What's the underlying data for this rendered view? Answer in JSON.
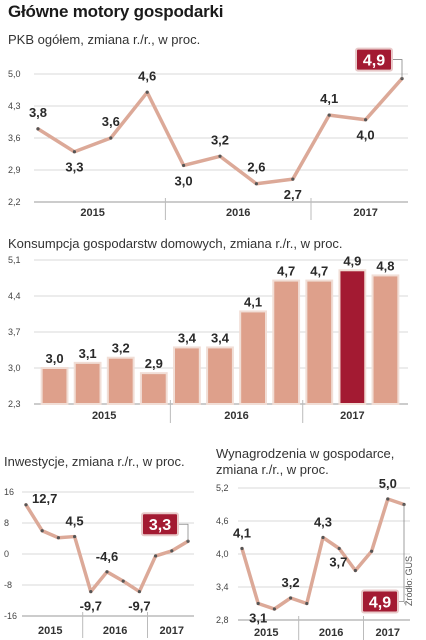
{
  "page": {
    "title": "Główne motory gospodarki",
    "source": "Źródło: GUS"
  },
  "colors": {
    "line": "#dca998",
    "bar": "#dea08b",
    "highlight": "#a31a32",
    "grid": "#d8d8d8",
    "marker": "#555555"
  },
  "chart_data": [
    {
      "id": "pkb",
      "type": "line",
      "title": "PKB ogółem, zmiana r./r., w proc.",
      "values": [
        3.8,
        3.3,
        3.6,
        4.6,
        3.0,
        3.2,
        2.6,
        2.7,
        4.1,
        4.0,
        4.9
      ],
      "labels": [
        "3,8",
        "3,3",
        "3,6",
        "4,6",
        "3,0",
        "3,2",
        "2,6",
        "2,7",
        "4,1",
        "4,0",
        "4,9"
      ],
      "label_pos": [
        "above",
        "below",
        "above",
        "above",
        "below",
        "above",
        "above",
        "below",
        "above",
        "below",
        "highlight"
      ],
      "yticks": [
        5.0,
        4.3,
        3.6,
        2.9,
        2.2
      ],
      "ytick_labels": [
        "5,0",
        "4,3",
        "3,6",
        "2,9",
        "2,2"
      ],
      "ylim": [
        2.2,
        5.0
      ],
      "years": [
        "2015",
        "2016",
        "2017"
      ],
      "year_spans": [
        [
          0,
          3
        ],
        [
          4,
          7
        ],
        [
          8,
          10
        ]
      ],
      "highlight_index": 10
    },
    {
      "id": "konsumpcja",
      "type": "bar",
      "title": "Konsumpcja gospodarstw domowych, zmiana r./r., w proc.",
      "values": [
        3.0,
        3.1,
        3.2,
        2.9,
        3.4,
        3.4,
        4.1,
        4.7,
        4.7,
        4.9,
        4.8
      ],
      "labels": [
        "3,0",
        "3,1",
        "3,2",
        "2,9",
        "3,4",
        "3,4",
        "4,1",
        "4,7",
        "4,7",
        "4,9",
        "4,8"
      ],
      "yticks": [
        5.1,
        4.4,
        3.7,
        3.0,
        2.3
      ],
      "ytick_labels": [
        "5,1",
        "4,4",
        "3,7",
        "3,0",
        "2,3"
      ],
      "ylim": [
        2.3,
        5.1
      ],
      "years": [
        "2015",
        "2016",
        "2017"
      ],
      "year_spans": [
        [
          0,
          3
        ],
        [
          4,
          7
        ],
        [
          8,
          10
        ]
      ],
      "highlight_index": 9
    },
    {
      "id": "inwestycje",
      "type": "line",
      "title": "Inwestycje, zmiana r./r., w proc.",
      "values": [
        12.7,
        6.0,
        4.2,
        4.5,
        -9.7,
        -4.6,
        -7.0,
        -9.7,
        -0.5,
        0.8,
        3.3
      ],
      "labels": [
        "12,7",
        "",
        "",
        "4,5",
        "-9,7",
        "-4,6",
        "",
        "-9,7",
        "",
        "",
        "3,3"
      ],
      "label_pos": [
        "right",
        "",
        "",
        "above",
        "below",
        "above",
        "",
        "below",
        "",
        "",
        "highlight"
      ],
      "yticks": [
        16,
        8,
        0,
        -8,
        -16
      ],
      "ytick_labels": [
        "16",
        "8",
        "0",
        "-8",
        "-16"
      ],
      "ylim": [
        -16,
        16
      ],
      "years": [
        "2015",
        "2016",
        "2017"
      ],
      "year_spans": [
        [
          0,
          3
        ],
        [
          4,
          7
        ],
        [
          8,
          10
        ]
      ],
      "highlight_index": 10
    },
    {
      "id": "wynagrodzenia",
      "type": "line",
      "title": [
        "Wynagrodzenia w gospodarce,",
        "zmiana r./r., w proc."
      ],
      "values": [
        4.1,
        3.1,
        3.0,
        3.2,
        3.1,
        4.3,
        4.1,
        3.7,
        4.05,
        5.0,
        4.9
      ],
      "labels": [
        "4,1",
        "3,1",
        "",
        "3,2",
        "",
        "4,3",
        "",
        "3,7",
        "",
        "5,0",
        "4,9"
      ],
      "label_pos": [
        "above",
        "below",
        "",
        "above",
        "",
        "above",
        "",
        "left",
        "",
        "above",
        "highlight"
      ],
      "yticks": [
        5.2,
        4.6,
        4.0,
        3.4,
        2.8
      ],
      "ytick_labels": [
        "5,2",
        "4,6",
        "4,0",
        "3,4",
        "2,8"
      ],
      "ylim": [
        2.8,
        5.2
      ],
      "years": [
        "2015",
        "2016",
        "2017"
      ],
      "year_spans": [
        [
          0,
          3
        ],
        [
          4,
          7
        ],
        [
          8,
          10
        ]
      ],
      "highlight_index": 10
    }
  ]
}
